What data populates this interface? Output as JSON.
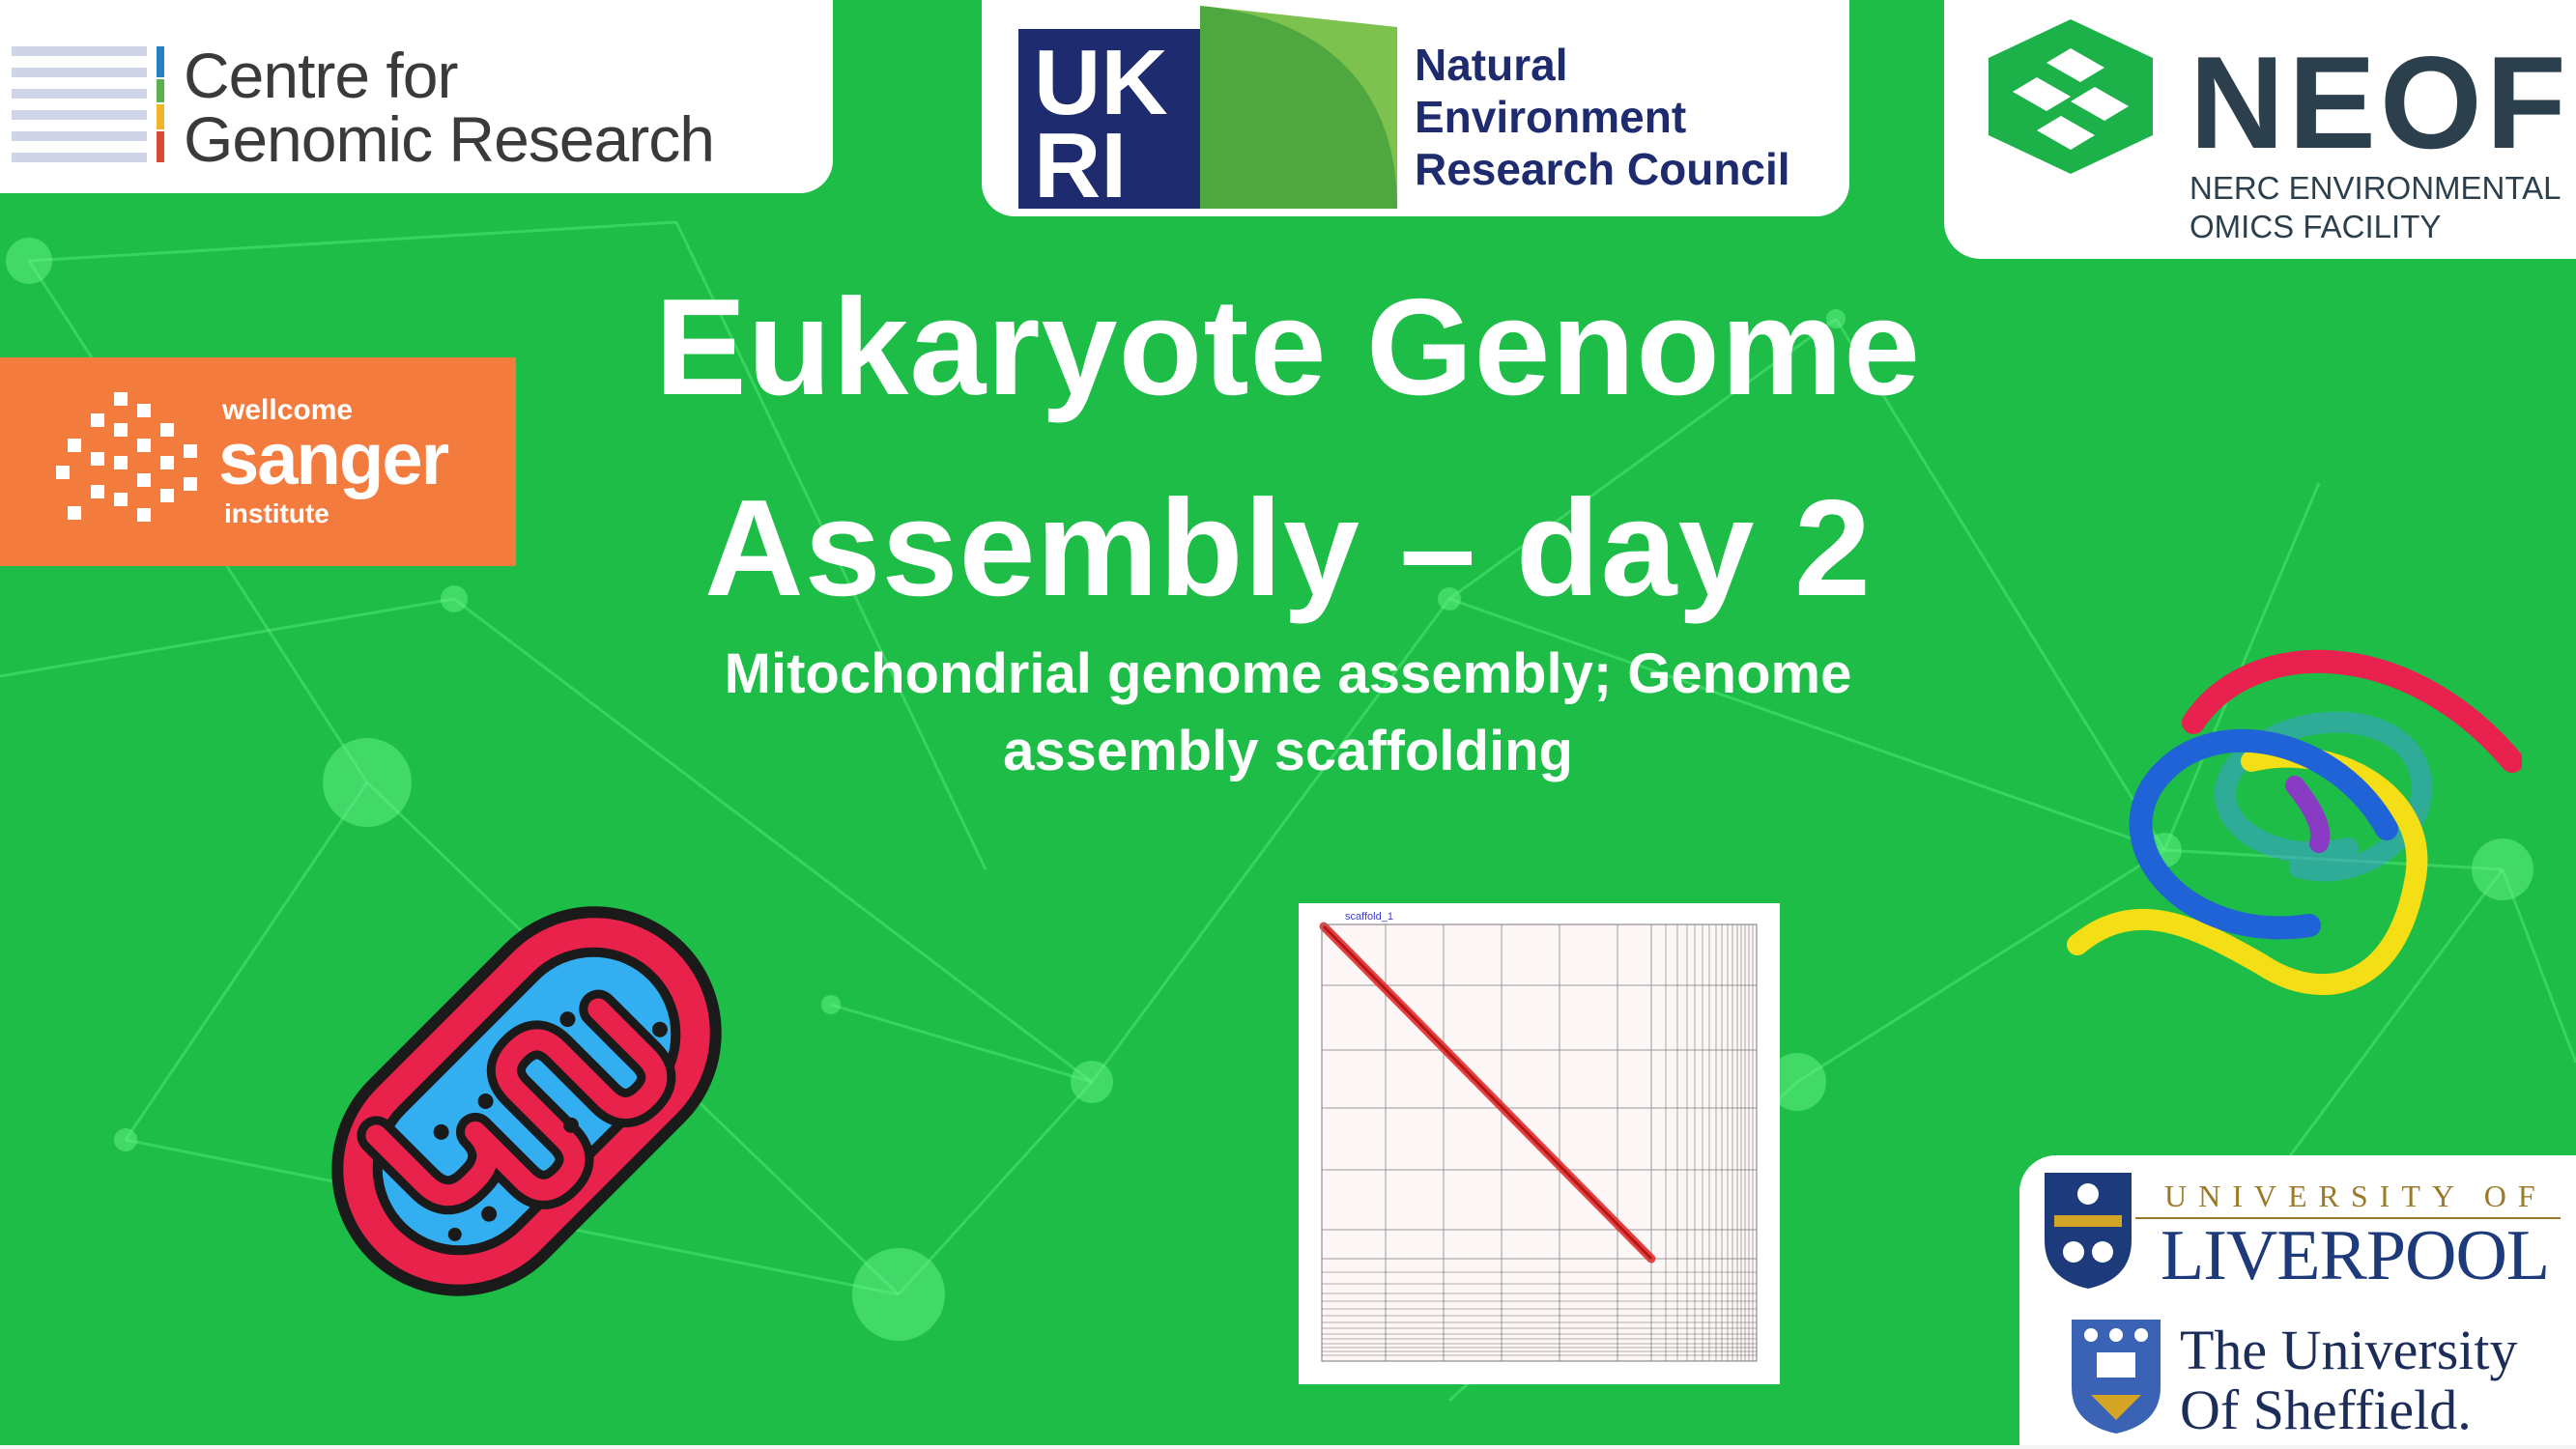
{
  "slide": {
    "title_line1": "Eukaryote Genome",
    "title_line2": "Assembly – day 2",
    "subtitle_line1": "Mitochondrial genome assembly; Genome",
    "subtitle_line2": "assembly scaffolding"
  },
  "logos": {
    "cgr": {
      "line1": "Centre for",
      "line2": "Genomic Research"
    },
    "ukri": {
      "mark": "UKRI",
      "line1": "Natural",
      "line2": "Environment",
      "line3": "Research Council"
    },
    "neof": {
      "name": "NEOF",
      "sub1": "NERC ENVIRONMENTAL",
      "sub2": "OMICS FACILITY"
    },
    "sanger": {
      "small1": "wellcome",
      "big": "sanger",
      "small2": "institute"
    },
    "liverpool": {
      "sub": "UNIVERSITY OF",
      "name": "LIVERPOOL"
    },
    "sheffield": {
      "line1": "The University",
      "line2": "Of Sheffield."
    }
  },
  "hic_map": {
    "label": "scaffold_1"
  },
  "colors": {
    "background": "#1dbd47",
    "mito_outline": "#e8224b",
    "mito_fill": "#33aef0",
    "sanger": "#f47b3e",
    "ukri_navy": "#1e2b6e",
    "neof_green": "#1db14a"
  },
  "icons": [
    "mitochondrion-icon",
    "chromosome-strands-icon",
    "ukri-mark-icon",
    "neof-mark-icon",
    "sanger-dots-icon",
    "liverpool-crest-icon",
    "sheffield-crest-icon"
  ]
}
